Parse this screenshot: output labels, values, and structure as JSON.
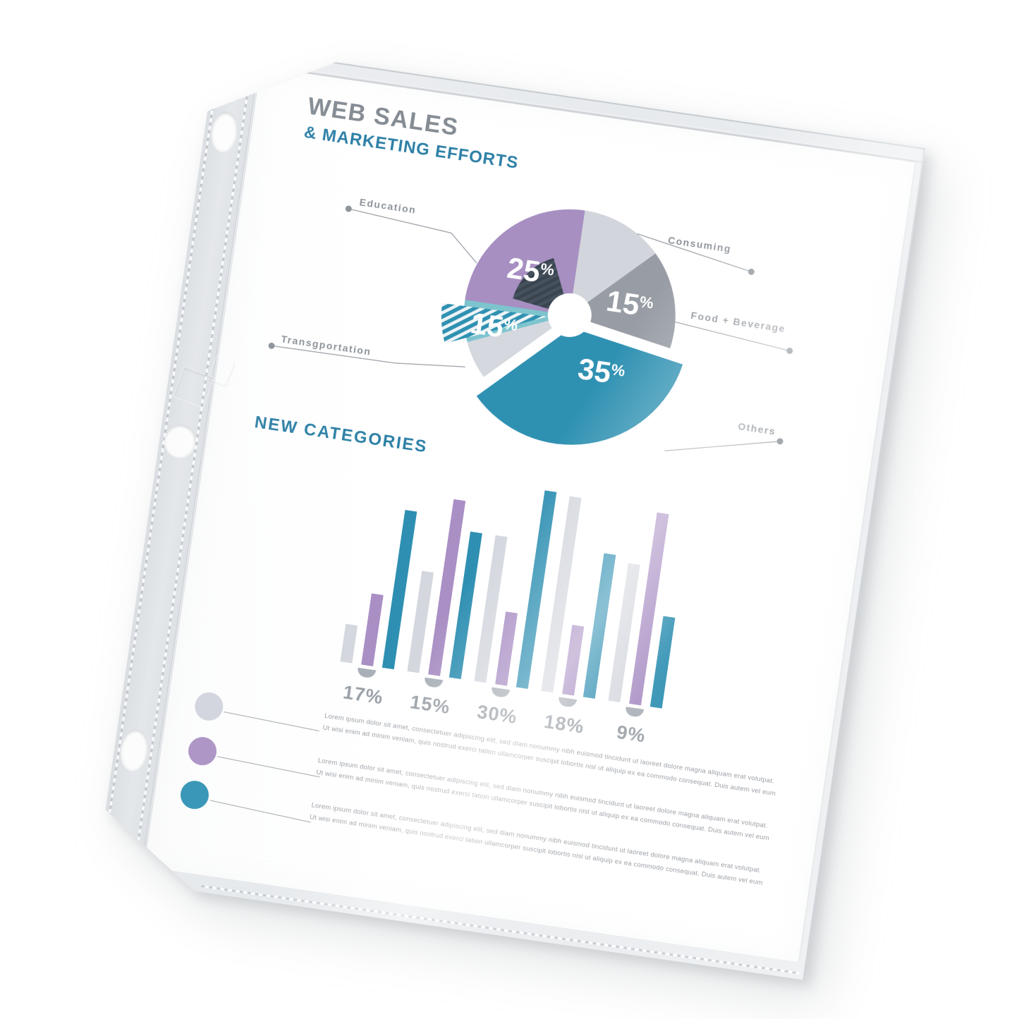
{
  "page": {
    "title1": "WEB SALES",
    "title2": "& MARKETING EFFORTS",
    "section_heading": "NEW CATEGORIES",
    "pie": {
      "percent": "%",
      "values": {
        "education": "25",
        "food": "15",
        "others": "35",
        "transportation": "15"
      },
      "labels": {
        "education": "Education",
        "consuming": "Consuming",
        "food": "Food + Beverage",
        "others": "Others",
        "transportation": "Transgportation"
      }
    },
    "bars": {
      "labels": [
        "17%",
        "15%",
        "30%",
        "18%",
        "9%"
      ]
    },
    "paragraphs": [
      {
        "line1": "Lorem ipsum dolor sit amet, consectetuer adipiscing elit, sed diam nonummy nibh euismod tincidunt ut laoreet dolore magna aliquam erat volutpat.",
        "line2": "Ut wisi enim ad minim veniam, quis nostrud exerci tation ullamcorper suscipit lobortis nisl ut aliquip ex ea commodo consequat. Duis autem vel eum"
      },
      {
        "line1": "Lorem ipsum dolor sit amet, consectetuer adipiscing elit, sed diam nonummy nibh euismod tincidunt ut laoreet dolore magna aliquam erat volutpat.",
        "line2": "Ut wisi enim ad minim veniam, quis nostrud exerci tation ullamcorper suscipit lobortis nisl ut aliquip ex ea commodo consequat. Duis autem vel eum"
      },
      {
        "line1": "Lorem ipsum dolor sit amet, consectetuer adipiscing elit, sed diam nonummy nibh euismod tincidunt ut laoreet dolore magna aliquam erat volutpat.",
        "line2": "Ut wisi enim ad minim veniam, quis nostrud exerci tation ullamcorper suscipit lobortis nisl ut aliquip ex ea commodo consequat. Duis autem vel eum"
      }
    ],
    "colors": {
      "accent_teal": "#2f90b2",
      "accent_teal_text": "#2d80a6",
      "light_teal": "#7ec4ce",
      "purple": "#a78fc2",
      "light_gray": "#d2d5dc",
      "mid_gray": "#989da5",
      "dark_slate": "#3e4a56",
      "title_gray": "#858c94"
    }
  },
  "chart_data": [
    {
      "type": "pie",
      "title": "WEB SALES & MARKETING EFFORTS",
      "style": "donut, two exploded wedges, labels on leader lines",
      "slices": [
        {
          "label": "Education",
          "value_pct": 25,
          "color": "#a78fc2"
        },
        {
          "label": "Consuming",
          "value_pct": null,
          "color": "#d2d5dc"
        },
        {
          "label": "Food + Beverage",
          "value_pct": 15,
          "color": "#989da5"
        },
        {
          "label": "Others",
          "value_pct": 35,
          "color": "#2f90b2",
          "exploded": true
        },
        {
          "label": "Transgportation",
          "value_pct": 15,
          "color": "#7ec4ce"
        }
      ]
    },
    {
      "type": "bar",
      "title": "NEW CATEGORIES",
      "categories": [
        "17%",
        "15%",
        "30%",
        "18%",
        "9%"
      ],
      "series": [
        {
          "name": "gray",
          "color": "#d4d7de",
          "values": [
            19,
            51,
            74,
            99,
            70
          ]
        },
        {
          "name": "purple",
          "color": "#a98fc4",
          "values": [
            36,
            89,
            37,
            35,
            97
          ]
        },
        {
          "name": "teal",
          "color": "#2e8fb2",
          "values": [
            80,
            74,
            100,
            73,
            46
          ]
        }
      ],
      "note": "values are relative bar heights (0-100); printed labels are the category percentages",
      "legend_position": "lower-left as colored dots with paragraphs"
    }
  ]
}
